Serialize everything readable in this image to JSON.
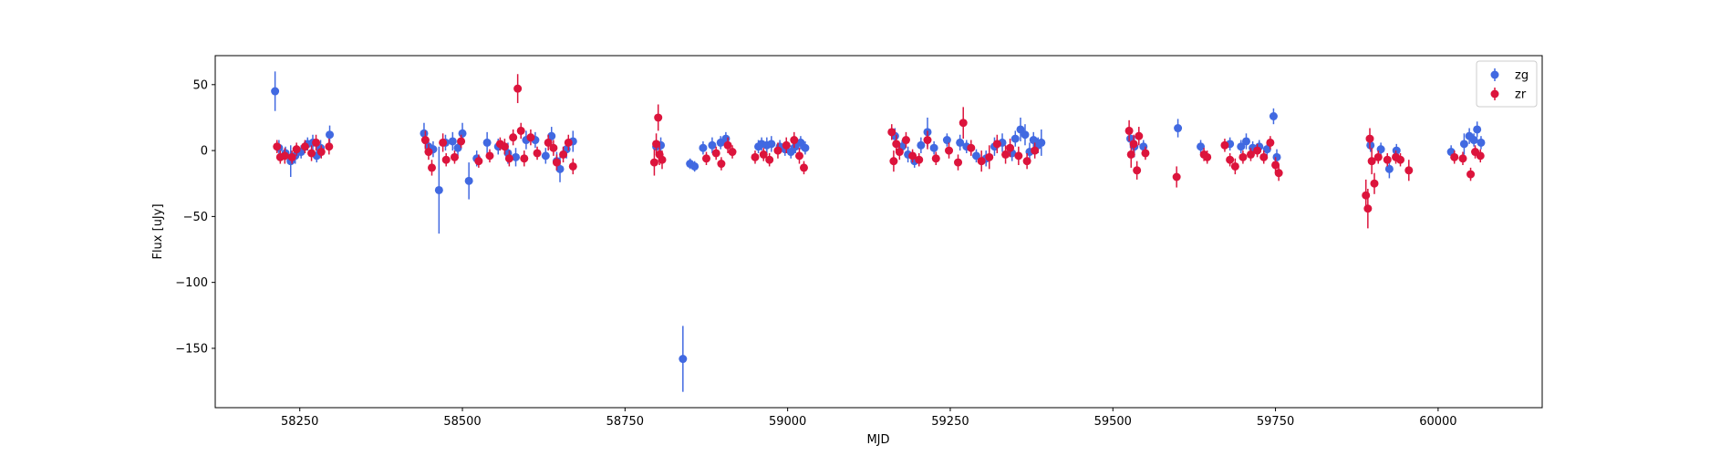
{
  "chart_data": {
    "type": "scatter",
    "subtype": "errorbar",
    "title": "",
    "xlabel": "MJD",
    "ylabel": "Flux [uJy]",
    "xlim": [
      58120,
      60160
    ],
    "ylim": [
      -195,
      72
    ],
    "xticks": [
      58250,
      58500,
      58750,
      59000,
      59250,
      59500,
      59750,
      60000
    ],
    "yticks": [
      50,
      0,
      -50,
      -100,
      -150
    ],
    "xtick_labels": [
      "58250",
      "58500",
      "58750",
      "59000",
      "59250",
      "59500",
      "59750",
      "60000"
    ],
    "ytick_labels": [
      "50",
      "0",
      "−50",
      "−100",
      "−150"
    ],
    "grid": false,
    "legend_position": "top-right",
    "series": [
      {
        "name": "zg",
        "color": "#4169e1",
        "points": [
          [
            58212,
            45,
            15
          ],
          [
            58218,
            2,
            6
          ],
          [
            58228,
            -2,
            5
          ],
          [
            58236,
            -8,
            12
          ],
          [
            58243,
            -4,
            6
          ],
          [
            58252,
            -1,
            5
          ],
          [
            58262,
            5,
            5
          ],
          [
            58270,
            6,
            6
          ],
          [
            58276,
            -4,
            5
          ],
          [
            58282,
            2,
            6
          ],
          [
            58296,
            12,
            7
          ],
          [
            58441,
            13,
            8
          ],
          [
            58448,
            3,
            6
          ],
          [
            58455,
            1,
            6
          ],
          [
            58464,
            -30,
            33
          ],
          [
            58474,
            6,
            6
          ],
          [
            58485,
            7,
            7
          ],
          [
            58493,
            2,
            6
          ],
          [
            58500,
            13,
            8
          ],
          [
            58510,
            -23,
            14
          ],
          [
            58522,
            -6,
            6
          ],
          [
            58538,
            6,
            8
          ],
          [
            58555,
            3,
            6
          ],
          [
            58570,
            -2,
            8
          ],
          [
            58582,
            -5,
            7
          ],
          [
            58598,
            8,
            7
          ],
          [
            58612,
            8,
            6
          ],
          [
            58628,
            -4,
            6
          ],
          [
            58637,
            11,
            7
          ],
          [
            58645,
            -8,
            7
          ],
          [
            58650,
            -14,
            10
          ],
          [
            58660,
            1,
            7
          ],
          [
            58670,
            7,
            8
          ],
          [
            58798,
            3,
            5
          ],
          [
            58805,
            4,
            6
          ],
          [
            58839,
            -158,
            25
          ],
          [
            58850,
            -10,
            4
          ],
          [
            58857,
            -12,
            4
          ],
          [
            58870,
            2,
            5
          ],
          [
            58884,
            4,
            6
          ],
          [
            58897,
            6,
            5
          ],
          [
            58905,
            9,
            5
          ],
          [
            58955,
            3,
            5
          ],
          [
            58960,
            5,
            5
          ],
          [
            58968,
            4,
            6
          ],
          [
            58975,
            5,
            6
          ],
          [
            58988,
            3,
            5
          ],
          [
            58996,
            1,
            5
          ],
          [
            59005,
            -1,
            5
          ],
          [
            59012,
            3,
            5
          ],
          [
            59020,
            6,
            5
          ],
          [
            59027,
            2,
            5
          ],
          [
            59165,
            11,
            6
          ],
          [
            59176,
            3,
            5
          ],
          [
            59185,
            -3,
            6
          ],
          [
            59195,
            -8,
            5
          ],
          [
            59205,
            4,
            6
          ],
          [
            59215,
            14,
            11
          ],
          [
            59225,
            2,
            5
          ],
          [
            59245,
            8,
            5
          ],
          [
            59265,
            6,
            6
          ],
          [
            59275,
            3,
            5
          ],
          [
            59290,
            -4,
            5
          ],
          [
            59305,
            -6,
            6
          ],
          [
            59318,
            3,
            7
          ],
          [
            59330,
            6,
            7
          ],
          [
            59345,
            -2,
            6
          ],
          [
            59350,
            9,
            6
          ],
          [
            59358,
            16,
            9
          ],
          [
            59365,
            12,
            8
          ],
          [
            59372,
            -1,
            7
          ],
          [
            59378,
            8,
            6
          ],
          [
            59385,
            4,
            6
          ],
          [
            59390,
            6,
            10
          ],
          [
            59527,
            9,
            7
          ],
          [
            59533,
            3,
            8
          ],
          [
            59547,
            3,
            5
          ],
          [
            59600,
            17,
            7
          ],
          [
            59635,
            3,
            5
          ],
          [
            59680,
            5,
            5
          ],
          [
            59697,
            3,
            5
          ],
          [
            59705,
            7,
            6
          ],
          [
            59715,
            2,
            5
          ],
          [
            59725,
            3,
            5
          ],
          [
            59737,
            1,
            5
          ],
          [
            59747,
            26,
            6
          ],
          [
            59752,
            -5,
            6
          ],
          [
            59896,
            4,
            5
          ],
          [
            59912,
            1,
            5
          ],
          [
            59925,
            -14,
            7
          ],
          [
            59936,
            0,
            5
          ],
          [
            60020,
            -1,
            5
          ],
          [
            60040,
            5,
            8
          ],
          [
            60048,
            11,
            6
          ],
          [
            60055,
            8,
            5
          ],
          [
            60060,
            16,
            6
          ],
          [
            60066,
            6,
            5
          ]
        ]
      },
      {
        "name": "zr",
        "color": "#dc143c",
        "points": [
          [
            58215,
            3,
            5
          ],
          [
            58220,
            -5,
            5
          ],
          [
            58227,
            -4,
            6
          ],
          [
            58238,
            -5,
            5
          ],
          [
            58245,
            1,
            5
          ],
          [
            58258,
            3,
            5
          ],
          [
            58268,
            -2,
            6
          ],
          [
            58275,
            6,
            6
          ],
          [
            58283,
            -1,
            5
          ],
          [
            58295,
            3,
            6
          ],
          [
            58443,
            8,
            7
          ],
          [
            58448,
            -1,
            6
          ],
          [
            58453,
            -13,
            6
          ],
          [
            58470,
            6,
            7
          ],
          [
            58475,
            -7,
            5
          ],
          [
            58488,
            -5,
            5
          ],
          [
            58498,
            7,
            5
          ],
          [
            58525,
            -8,
            5
          ],
          [
            58542,
            -4,
            5
          ],
          [
            58558,
            5,
            5
          ],
          [
            58565,
            3,
            6
          ],
          [
            58572,
            -6,
            6
          ],
          [
            58578,
            10,
            6
          ],
          [
            58585,
            47,
            11
          ],
          [
            58590,
            15,
            6
          ],
          [
            58595,
            -6,
            6
          ],
          [
            58605,
            10,
            6
          ],
          [
            58615,
            -2,
            5
          ],
          [
            58632,
            6,
            6
          ],
          [
            58640,
            2,
            6
          ],
          [
            58645,
            -9,
            6
          ],
          [
            58655,
            -3,
            6
          ],
          [
            58663,
            6,
            6
          ],
          [
            58670,
            -12,
            6
          ],
          [
            58795,
            -9,
            10
          ],
          [
            58798,
            5,
            8
          ],
          [
            58801,
            25,
            10
          ],
          [
            58803,
            -3,
            8
          ],
          [
            58807,
            -7,
            7
          ],
          [
            58875,
            -6,
            5
          ],
          [
            58890,
            -2,
            5
          ],
          [
            58898,
            -10,
            5
          ],
          [
            58908,
            4,
            6
          ],
          [
            58915,
            -1,
            5
          ],
          [
            58950,
            -5,
            5
          ],
          [
            58963,
            -3,
            5
          ],
          [
            58972,
            -7,
            5
          ],
          [
            58985,
            0,
            6
          ],
          [
            58998,
            4,
            6
          ],
          [
            59010,
            8,
            6
          ],
          [
            59018,
            -4,
            6
          ],
          [
            59025,
            -13,
            5
          ],
          [
            59160,
            14,
            6
          ],
          [
            59163,
            -8,
            8
          ],
          [
            59167,
            5,
            7
          ],
          [
            59172,
            -1,
            6
          ],
          [
            59182,
            8,
            6
          ],
          [
            59192,
            -4,
            5
          ],
          [
            59202,
            -7,
            5
          ],
          [
            59215,
            8,
            7
          ],
          [
            59228,
            -6,
            5
          ],
          [
            59248,
            0,
            6
          ],
          [
            59262,
            -9,
            6
          ],
          [
            59270,
            21,
            12
          ],
          [
            59282,
            2,
            6
          ],
          [
            59298,
            -8,
            8
          ],
          [
            59310,
            -5,
            9
          ],
          [
            59322,
            5,
            7
          ],
          [
            59335,
            -3,
            7
          ],
          [
            59342,
            2,
            7
          ],
          [
            59355,
            -4,
            7
          ],
          [
            59368,
            -8,
            6
          ],
          [
            59380,
            0,
            6
          ],
          [
            59525,
            15,
            8
          ],
          [
            59528,
            -3,
            10
          ],
          [
            59532,
            5,
            7
          ],
          [
            59537,
            -15,
            7
          ],
          [
            59540,
            11,
            7
          ],
          [
            59550,
            -2,
            5
          ],
          [
            59598,
            -20,
            8
          ],
          [
            59640,
            -3,
            5
          ],
          [
            59645,
            -5,
            5
          ],
          [
            59672,
            4,
            5
          ],
          [
            59680,
            -7,
            5
          ],
          [
            59688,
            -12,
            6
          ],
          [
            59700,
            -5,
            5
          ],
          [
            59712,
            -3,
            5
          ],
          [
            59722,
            0,
            5
          ],
          [
            59732,
            -5,
            5
          ],
          [
            59742,
            6,
            5
          ],
          [
            59750,
            -11,
            6
          ],
          [
            59755,
            -17,
            6
          ],
          [
            59889,
            -34,
            12
          ],
          [
            59892,
            -44,
            15
          ],
          [
            59895,
            9,
            8
          ],
          [
            59898,
            -8,
            10
          ],
          [
            59902,
            -25,
            8
          ],
          [
            59908,
            -5,
            5
          ],
          [
            59922,
            -7,
            5
          ],
          [
            59935,
            -5,
            5
          ],
          [
            59942,
            -7,
            5
          ],
          [
            59955,
            -15,
            8
          ],
          [
            60025,
            -5,
            5
          ],
          [
            60038,
            -6,
            5
          ],
          [
            60050,
            -18,
            5
          ],
          [
            60057,
            -1,
            5
          ],
          [
            60065,
            -4,
            5
          ]
        ]
      }
    ]
  }
}
